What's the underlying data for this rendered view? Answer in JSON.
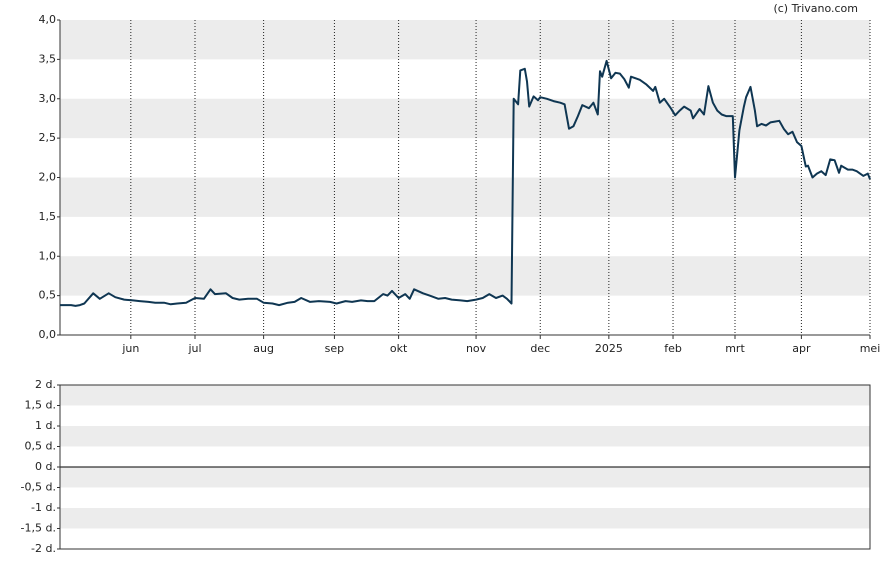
{
  "credit": "(c) Trivano.com",
  "chart_data": [
    {
      "type": "line",
      "x": [
        0,
        5,
        7,
        9,
        11,
        15,
        18,
        22,
        25,
        29,
        33,
        36,
        40,
        43,
        47,
        50,
        53,
        57,
        61,
        65,
        68,
        70,
        75,
        78,
        81,
        85,
        89,
        92,
        96,
        99,
        103,
        106,
        109,
        113,
        117,
        122,
        125,
        129,
        132,
        136,
        139,
        142,
        146,
        148,
        150,
        153,
        156,
        158,
        160,
        164,
        167,
        171,
        174,
        177,
        181,
        184,
        188,
        191,
        194,
        197,
        200,
        202,
        204,
        205,
        207,
        208,
        210,
        211,
        212,
        214,
        216,
        217,
        220,
        223,
        226,
        228,
        230,
        232,
        234,
        236,
        239,
        241,
        243,
        244,
        245,
        247,
        249,
        251,
        253,
        255,
        257,
        258,
        262,
        265,
        268,
        269,
        271,
        273,
        276,
        278,
        280,
        282,
        285,
        286,
        289,
        291,
        293,
        295,
        297,
        299,
        301,
        304,
        305,
        307,
        309,
        310,
        312,
        314,
        315,
        317,
        319,
        321,
        323,
        325,
        327,
        329,
        331,
        333,
        335,
        337,
        338,
        340,
        342,
        344,
        346,
        348,
        350,
        352,
        353,
        356,
        358,
        360,
        363,
        365,
        366
      ],
      "series": [
        {
          "color": "#0f3652",
          "values": [
            0.38,
            0.38,
            0.37,
            0.38,
            0.4,
            0.53,
            0.46,
            0.53,
            0.48,
            0.45,
            0.44,
            0.43,
            0.42,
            0.41,
            0.41,
            0.39,
            0.4,
            0.41,
            0.47,
            0.46,
            0.58,
            0.52,
            0.53,
            0.47,
            0.45,
            0.46,
            0.46,
            0.41,
            0.4,
            0.38,
            0.41,
            0.42,
            0.47,
            0.42,
            0.43,
            0.42,
            0.4,
            0.43,
            0.42,
            0.44,
            0.43,
            0.43,
            0.52,
            0.5,
            0.56,
            0.47,
            0.52,
            0.46,
            0.58,
            0.53,
            0.5,
            0.46,
            0.47,
            0.45,
            0.44,
            0.43,
            0.45,
            0.47,
            0.52,
            0.47,
            0.5,
            0.46,
            0.4,
            3.0,
            2.93,
            3.36,
            3.38,
            3.22,
            2.9,
            3.03,
            2.98,
            3.02,
            3.0,
            2.97,
            2.95,
            2.93,
            2.62,
            2.65,
            2.78,
            2.92,
            2.88,
            2.95,
            2.8,
            3.35,
            3.28,
            3.48,
            3.26,
            3.33,
            3.32,
            3.25,
            3.14,
            3.28,
            3.24,
            3.18,
            3.1,
            3.15,
            2.95,
            3.0,
            2.88,
            2.79,
            2.85,
            2.9,
            2.85,
            2.75,
            2.87,
            2.8,
            3.16,
            2.95,
            2.85,
            2.8,
            2.78,
            2.78,
            2.0,
            2.6,
            2.9,
            3.02,
            3.15,
            2.85,
            2.65,
            2.68,
            2.66,
            2.7,
            2.71,
            2.72,
            2.62,
            2.55,
            2.58,
            2.45,
            2.4,
            2.14,
            2.15,
            2.0,
            2.05,
            2.08,
            2.03,
            2.23,
            2.22,
            2.06,
            2.15,
            2.1,
            2.1,
            2.08,
            2.02,
            2.05,
            1.98
          ]
        }
      ],
      "xlim": [
        0,
        366
      ],
      "xticks": [
        {
          "value": 32,
          "label": "jun"
        },
        {
          "value": 61,
          "label": "jul"
        },
        {
          "value": 92,
          "label": "aug"
        },
        {
          "value": 124,
          "label": "sep"
        },
        {
          "value": 153,
          "label": "okt"
        },
        {
          "value": 188,
          "label": "nov"
        },
        {
          "value": 217,
          "label": "dec"
        },
        {
          "value": 248,
          "label": "2025"
        },
        {
          "value": 277,
          "label": "feb"
        },
        {
          "value": 305,
          "label": "mrt"
        },
        {
          "value": 335,
          "label": "apr"
        },
        {
          "value": 366,
          "label": "mei"
        }
      ],
      "ylim": [
        0,
        4
      ],
      "yticks": [
        {
          "value": 0,
          "label": "0,0"
        },
        {
          "value": 0.5,
          "label": "0,5"
        },
        {
          "value": 1,
          "label": "1,0"
        },
        {
          "value": 1.5,
          "label": "1,5"
        },
        {
          "value": 2,
          "label": "2,0"
        },
        {
          "value": 2.5,
          "label": "2,5"
        },
        {
          "value": 3,
          "label": "3,0"
        },
        {
          "value": 3.5,
          "label": "3,5"
        },
        {
          "value": 4,
          "label": "4,0"
        }
      ],
      "grid": "bands",
      "x_grid": "dotted"
    },
    {
      "type": "line",
      "series": [],
      "ylim": [
        -2,
        2
      ],
      "yticks": [
        {
          "value": -2,
          "label": "-2 d."
        },
        {
          "value": -1.5,
          "label": "-1,5 d."
        },
        {
          "value": -1,
          "label": "-1 d."
        },
        {
          "value": -0.5,
          "label": "-0,5 d."
        },
        {
          "value": 0,
          "label": "0 d."
        },
        {
          "value": 0.5,
          "label": "0,5 d."
        },
        {
          "value": 1,
          "label": "1 d."
        },
        {
          "value": 1.5,
          "label": "1,5 d."
        },
        {
          "value": 2,
          "label": "2 d."
        }
      ],
      "grid": "bands",
      "zero_line": true
    }
  ]
}
